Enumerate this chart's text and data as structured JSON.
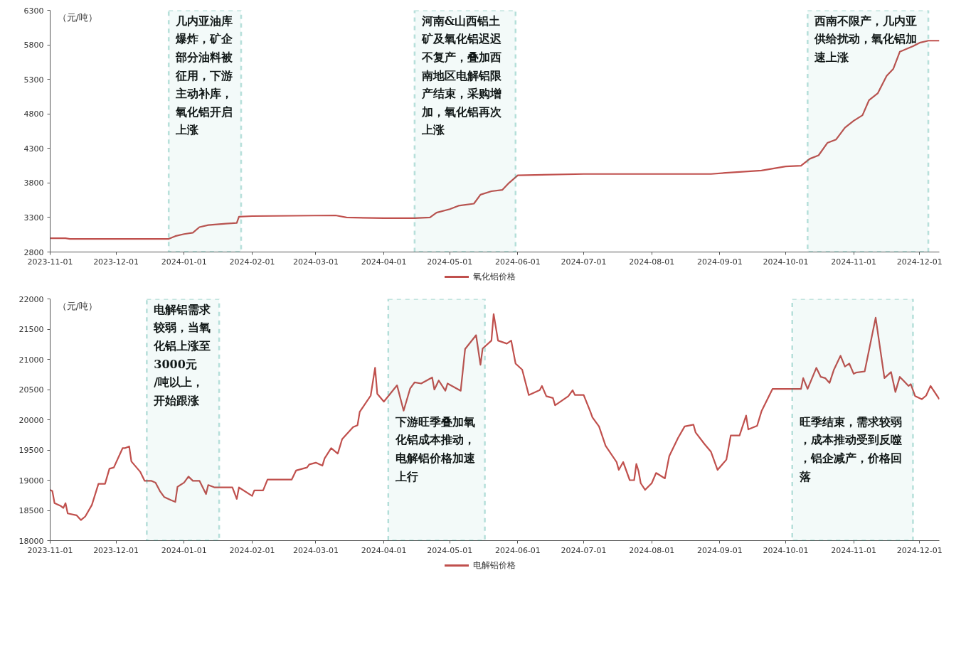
{
  "chart_data": [
    {
      "type": "line",
      "ylabel": "（元/吨）",
      "xlim": [
        "2023-11-01",
        "2024-12-10"
      ],
      "ylim": [
        2800,
        6300
      ],
      "yticks": [
        2800,
        3300,
        3800,
        4300,
        4800,
        5300,
        5800,
        6300
      ],
      "xticks": [
        "2023-11-01",
        "2023-12-01",
        "2024-01-01",
        "2024-02-01",
        "2024-03-01",
        "2024-04-01",
        "2024-05-01",
        "2024-06-01",
        "2024-07-01",
        "2024-08-01",
        "2024-09-01",
        "2024-10-01",
        "2024-11-01",
        "2024-12-01"
      ],
      "grid": false,
      "legend": "bottom",
      "marker": "none",
      "line_style": "solid",
      "series": [
        {
          "name": "氧化铝价格",
          "color": "#c0504d",
          "x": [
            "2023-11-01",
            "2023-11-08",
            "2023-11-10",
            "2023-12-25",
            "2023-12-28",
            "2024-01-01",
            "2024-01-05",
            "2024-01-08",
            "2024-01-12",
            "2024-01-20",
            "2024-01-25",
            "2024-01-26",
            "2024-02-01",
            "2024-03-10",
            "2024-03-15",
            "2024-04-01",
            "2024-04-15",
            "2024-04-22",
            "2024-04-25",
            "2024-05-01",
            "2024-05-05",
            "2024-05-12",
            "2024-05-15",
            "2024-05-20",
            "2024-05-25",
            "2024-05-28",
            "2024-06-01",
            "2024-07-01",
            "2024-08-28",
            "2024-09-05",
            "2024-09-20",
            "2024-10-01",
            "2024-10-08",
            "2024-10-12",
            "2024-10-16",
            "2024-10-20",
            "2024-10-24",
            "2024-10-28",
            "2024-11-01",
            "2024-11-05",
            "2024-11-08",
            "2024-11-12",
            "2024-11-16",
            "2024-11-19",
            "2024-11-22",
            "2024-11-28",
            "2024-12-01",
            "2024-12-05",
            "2024-12-10"
          ],
          "values": [
            3000,
            3000,
            2990,
            2990,
            3030,
            3060,
            3080,
            3160,
            3190,
            3210,
            3220,
            3310,
            3320,
            3330,
            3300,
            3290,
            3290,
            3300,
            3370,
            3420,
            3470,
            3500,
            3630,
            3680,
            3700,
            3800,
            3910,
            3930,
            3930,
            3950,
            3980,
            4040,
            4050,
            4150,
            4200,
            4380,
            4430,
            4600,
            4700,
            4780,
            5000,
            5100,
            5350,
            5450,
            5700,
            5780,
            5830,
            5860,
            5860
          ]
        }
      ],
      "bands": [
        {
          "axis": "x",
          "from": "2023-12-25",
          "to": "2024-01-27",
          "label": "几内亚油库爆炸，矿企部分油料被征用，下游主动补库，氧化铝开启上涨",
          "color": "#1a9a8a"
        },
        {
          "axis": "x",
          "from": "2024-04-15",
          "to": "2024-05-31",
          "label": "河南&山西铝土矿及氧化铝迟迟不复产，叠加西南地区电解铝限产结束，采购增加，氧化铝再次上涨",
          "color": "#1a9a8a"
        },
        {
          "axis": "x",
          "from": "2024-10-11",
          "to": "2024-12-05",
          "label": "西南不限产，几内亚供给扰动，氧化铝加速上涨",
          "color": "#1a9a8a"
        }
      ]
    },
    {
      "type": "line",
      "ylabel": "（元/吨）",
      "xlim": [
        "2023-11-01",
        "2024-12-10"
      ],
      "ylim": [
        18000,
        22000
      ],
      "yticks": [
        18000,
        18500,
        19000,
        19500,
        20000,
        20500,
        21000,
        21500,
        22000
      ],
      "xticks": [
        "2023-11-01",
        "2023-12-01",
        "2024-01-01",
        "2024-02-01",
        "2024-03-01",
        "2024-04-01",
        "2024-05-01",
        "2024-06-01",
        "2024-07-01",
        "2024-08-01",
        "2024-09-01",
        "2024-10-01",
        "2024-11-01",
        "2024-12-01"
      ],
      "grid": false,
      "legend": "bottom",
      "marker": "none",
      "line_style": "solid",
      "series": [
        {
          "name": "电解铝价格",
          "color": "#c0504d",
          "x": [
            "2023-11-01",
            "2023-11-02",
            "2023-11-03",
            "2023-11-06",
            "2023-11-07",
            "2023-11-08",
            "2023-11-09",
            "2023-11-13",
            "2023-11-15",
            "2023-11-17",
            "2023-11-20",
            "2023-11-23",
            "2023-11-26",
            "2023-11-28",
            "2023-11-30",
            "2023-12-04",
            "2023-12-05",
            "2023-12-07",
            "2023-12-08",
            "2023-12-12",
            "2023-12-14",
            "2023-12-17",
            "2023-12-19",
            "2023-12-21",
            "2023-12-23",
            "2023-12-26",
            "2023-12-28",
            "2023-12-29",
            "2024-01-01",
            "2024-01-03",
            "2024-01-05",
            "2024-01-08",
            "2024-01-11",
            "2024-01-12",
            "2024-01-15",
            "2024-01-23",
            "2024-01-25",
            "2024-01-26",
            "2024-02-01",
            "2024-02-02",
            "2024-02-06",
            "2024-02-08",
            "2024-02-19",
            "2024-02-21",
            "2024-02-26",
            "2024-02-27",
            "2024-03-01",
            "2024-03-04",
            "2024-03-05",
            "2024-03-08",
            "2024-03-11",
            "2024-03-13",
            "2024-03-18",
            "2024-03-20",
            "2024-03-21",
            "2024-03-26",
            "2024-03-28",
            "2024-03-29",
            "2024-04-01",
            "2024-04-07",
            "2024-04-10",
            "2024-04-13",
            "2024-04-15",
            "2024-04-18",
            "2024-04-23",
            "2024-04-24",
            "2024-04-26",
            "2024-04-29",
            "2024-04-30",
            "2024-05-06",
            "2024-05-08",
            "2024-05-13",
            "2024-05-15",
            "2024-05-16",
            "2024-05-20",
            "2024-05-21",
            "2024-05-23",
            "2024-05-27",
            "2024-05-29",
            "2024-05-31",
            "2024-06-03",
            "2024-06-06",
            "2024-06-11",
            "2024-06-12",
            "2024-06-14",
            "2024-06-17",
            "2024-06-18",
            "2024-06-20",
            "2024-06-24",
            "2024-06-26",
            "2024-06-27",
            "2024-07-01",
            "2024-07-04",
            "2024-07-05",
            "2024-07-08",
            "2024-07-11",
            "2024-07-16",
            "2024-07-17",
            "2024-07-19",
            "2024-07-22",
            "2024-07-24",
            "2024-07-25",
            "2024-07-26",
            "2024-07-27",
            "2024-07-29",
            "2024-08-01",
            "2024-08-03",
            "2024-08-07",
            "2024-08-09",
            "2024-08-13",
            "2024-08-16",
            "2024-08-20",
            "2024-08-21",
            "2024-08-25",
            "2024-08-28",
            "2024-08-31",
            "2024-09-04",
            "2024-09-06",
            "2024-09-10",
            "2024-09-13",
            "2024-09-14",
            "2024-09-18",
            "2024-09-20",
            "2024-09-25",
            "2024-10-08",
            "2024-10-09",
            "2024-10-11",
            "2024-10-15",
            "2024-10-17",
            "2024-10-19",
            "2024-10-21",
            "2024-10-23",
            "2024-10-26",
            "2024-10-28",
            "2024-10-30",
            "2024-11-01",
            "2024-11-02",
            "2024-11-06",
            "2024-11-11",
            "2024-11-15",
            "2024-11-18",
            "2024-11-20",
            "2024-11-22",
            "2024-11-26",
            "2024-11-27",
            "2024-11-29",
            "2024-12-02",
            "2024-12-04",
            "2024-12-06",
            "2024-12-10"
          ],
          "values": [
            18840,
            18820,
            18620,
            18570,
            18540,
            18620,
            18450,
            18420,
            18340,
            18400,
            18590,
            18940,
            18940,
            19190,
            19210,
            19530,
            19530,
            19560,
            19310,
            19140,
            18990,
            18990,
            18960,
            18820,
            18720,
            18670,
            18640,
            18890,
            18960,
            19060,
            18990,
            18990,
            18770,
            18920,
            18880,
            18880,
            18690,
            18880,
            18740,
            18830,
            18830,
            19010,
            19010,
            19160,
            19210,
            19260,
            19290,
            19240,
            19360,
            19530,
            19440,
            19680,
            19880,
            19910,
            20130,
            20400,
            20860,
            20430,
            20300,
            20570,
            20150,
            20520,
            20620,
            20600,
            20700,
            20500,
            20650,
            20480,
            20600,
            20480,
            21170,
            21400,
            20910,
            21180,
            21310,
            21750,
            21310,
            21260,
            21310,
            20930,
            20830,
            20410,
            20490,
            20560,
            20390,
            20360,
            20240,
            20290,
            20390,
            20490,
            20410,
            20410,
            20140,
            20040,
            19890,
            19570,
            19300,
            19170,
            19300,
            19000,
            19000,
            19270,
            19150,
            18950,
            18840,
            18950,
            19120,
            19030,
            19400,
            19700,
            19890,
            19920,
            19790,
            19600,
            19470,
            19170,
            19340,
            19740,
            19740,
            20070,
            19840,
            19900,
            20140,
            20510,
            20510,
            20690,
            20510,
            20860,
            20710,
            20690,
            20610,
            20830,
            21060,
            20880,
            20930,
            20760,
            20780,
            20800,
            21690,
            20690,
            20790,
            20460,
            20710,
            20560,
            20590,
            20390,
            20340,
            20400,
            20560,
            20340
          ]
        }
      ],
      "bands": [
        {
          "axis": "x",
          "from": "2023-12-15",
          "to": "2024-01-17",
          "label": "电解铝需求较弱，当氧化铝上涨至3000元/吨以上，开始跟涨",
          "color": "#1a9a8a"
        },
        {
          "axis": "x",
          "from": "2024-04-03",
          "to": "2024-05-17",
          "label": "下游旺季叠加氧化铝成本推动，电解铝价格加速上行",
          "color": "#1a9a8a"
        },
        {
          "axis": "x",
          "from": "2024-10-04",
          "to": "2024-11-28",
          "label": "旺季结束，需求较弱，成本推动受到反噬，铝企减产，价格回落",
          "color": "#1a9a8a"
        }
      ]
    }
  ]
}
